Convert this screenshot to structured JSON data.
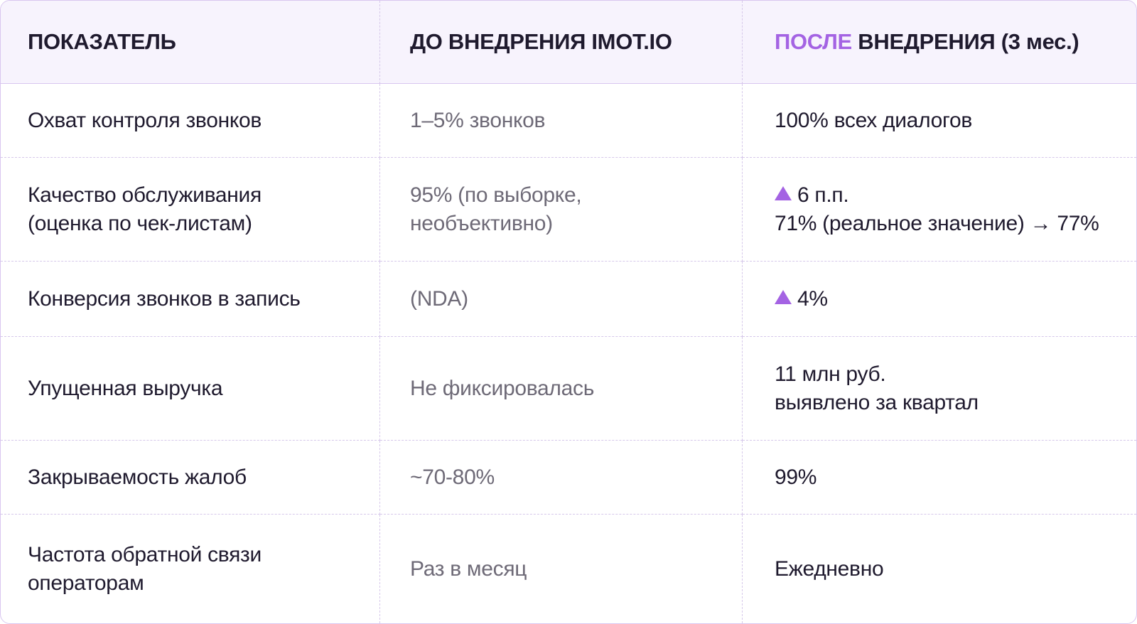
{
  "header": {
    "col1": "ПОКАЗАТЕЛЬ",
    "col2": "ДО ВНЕДРЕНИЯ IMOT.IO",
    "col3_accent": "ПОСЛЕ",
    "col3_rest": " ВНЕДРЕНИЯ (3 мес.)"
  },
  "rows": [
    {
      "metric": [
        "Охват контроля звонков"
      ],
      "before": [
        "1–5% звонков"
      ],
      "after_line1": "100% всех диалогов",
      "after_line2": ""
    },
    {
      "metric": [
        "Качество обслуживания",
        "(оценка по чек-листам)"
      ],
      "before": [
        "95% (по выборке,",
        "необъективно)"
      ],
      "after_line1": "6 п.п.",
      "after_line2": "71% (реальное значение) → 77%"
    },
    {
      "metric": [
        "Конверсия звонков в запись"
      ],
      "before": [
        "(NDA)"
      ],
      "after_line1": "4%",
      "after_line2": ""
    },
    {
      "metric": [
        "Упущенная выручка"
      ],
      "before": [
        "Не фиксировалась"
      ],
      "after_line1": "11 млн руб.",
      "after_line2": "выявлено за квартал"
    },
    {
      "metric": [
        "Закрываемость жалоб"
      ],
      "before": [
        "~70-80%"
      ],
      "after_line1": "99%",
      "after_line2": ""
    },
    {
      "metric": [
        "Частота обратной связи",
        "операторам"
      ],
      "before": [
        "Раз в месяц"
      ],
      "after_line1": "Ежедневно",
      "after_line2": ""
    }
  ],
  "colors": {
    "accent": "#a463e3",
    "header_bg": "#f7f3fd",
    "border": "#d6c8ea",
    "text_dark": "#1f1a2e",
    "text_muted": "#6e6a77"
  },
  "icons": {
    "increase": "triangle-up-icon"
  }
}
